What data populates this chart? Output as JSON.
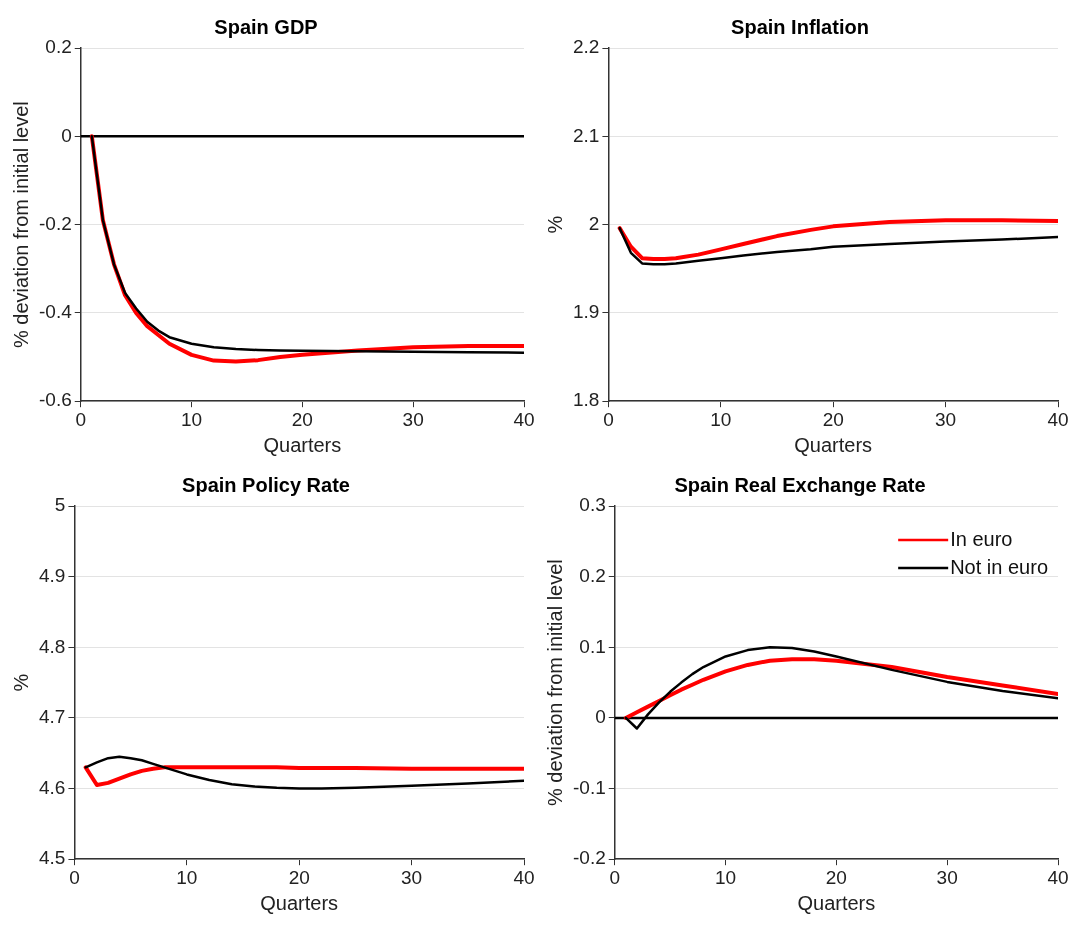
{
  "chart_data": [
    {
      "type": "line",
      "title": "Spain GDP",
      "xlabel": "Quarters",
      "ylabel": "% deviation from initial level",
      "xlim": [
        0,
        40
      ],
      "xticks": [
        0,
        10,
        20,
        30,
        40
      ],
      "ylim": [
        -0.6,
        0.2
      ],
      "yticks": [
        -0.6,
        -0.4,
        -0.2,
        0,
        0.2
      ],
      "grid": "y",
      "legend": false,
      "marker": "none",
      "line_style": "solid",
      "x": [
        1,
        2,
        3,
        4,
        5,
        6,
        7,
        8,
        10,
        12,
        14,
        16,
        18,
        20,
        25,
        30,
        35,
        40
      ],
      "series": [
        {
          "color": "#ff0000",
          "values": [
            0,
            -0.19,
            -0.29,
            -0.36,
            -0.4,
            -0.43,
            -0.45,
            -0.47,
            -0.495,
            -0.508,
            -0.51,
            -0.507,
            -0.5,
            -0.495,
            -0.485,
            -0.478,
            -0.475,
            -0.475
          ]
        },
        {
          "color": "#000000",
          "values": [
            0,
            -0.19,
            -0.29,
            -0.355,
            -0.39,
            -0.42,
            -0.44,
            -0.455,
            -0.47,
            -0.478,
            -0.482,
            -0.484,
            -0.485,
            -0.486,
            -0.487,
            -0.488,
            -0.489,
            -0.49
          ]
        }
      ],
      "ref_lines": [
        {
          "axis": "y",
          "value": 0,
          "color": "#000000"
        }
      ]
    },
    {
      "type": "line",
      "title": "Spain Inflation",
      "xlabel": "Quarters",
      "ylabel": "%",
      "xlim": [
        0,
        40
      ],
      "xticks": [
        0,
        10,
        20,
        30,
        40
      ],
      "ylim": [
        1.8,
        2.2
      ],
      "yticks": [
        1.8,
        1.9,
        2,
        2.1,
        2.2
      ],
      "grid": "y",
      "legend": false,
      "marker": "none",
      "line_style": "solid",
      "x": [
        1,
        2,
        3,
        4,
        5,
        6,
        8,
        10,
        12,
        15,
        18,
        20,
        25,
        30,
        35,
        40
      ],
      "series": [
        {
          "color": "#ff0000",
          "values": [
            1.996,
            1.975,
            1.962,
            1.961,
            1.961,
            1.962,
            1.966,
            1.972,
            1.978,
            1.987,
            1.994,
            1.998,
            2.003,
            2.005,
            2.005,
            2.004
          ]
        },
        {
          "color": "#000000",
          "values": [
            1.996,
            1.968,
            1.956,
            1.955,
            1.955,
            1.956,
            1.959,
            1.962,
            1.965,
            1.969,
            1.972,
            1.975,
            1.978,
            1.981,
            1.983,
            1.986
          ]
        }
      ]
    },
    {
      "type": "line",
      "title": "Spain Policy Rate",
      "xlabel": "Quarters",
      "ylabel": "%",
      "xlim": [
        0,
        40
      ],
      "xticks": [
        0,
        10,
        20,
        30,
        40
      ],
      "ylim": [
        4.5,
        5
      ],
      "yticks": [
        4.5,
        4.6,
        4.7,
        4.8,
        4.9,
        5
      ],
      "grid": "y",
      "legend": false,
      "marker": "none",
      "line_style": "solid",
      "x": [
        1,
        2,
        3,
        4,
        5,
        6,
        7,
        8,
        10,
        12,
        14,
        16,
        18,
        20,
        22,
        25,
        30,
        35,
        40
      ],
      "series": [
        {
          "color": "#ff0000",
          "values": [
            4.63,
            4.605,
            4.608,
            4.614,
            4.62,
            4.625,
            4.628,
            4.63,
            4.63,
            4.63,
            4.63,
            4.63,
            4.63,
            4.629,
            4.629,
            4.629,
            4.628,
            4.628,
            4.628
          ]
        },
        {
          "color": "#000000",
          "values": [
            4.63,
            4.637,
            4.643,
            4.645,
            4.643,
            4.64,
            4.635,
            4.63,
            4.62,
            4.612,
            4.606,
            4.603,
            4.601,
            4.6,
            4.6,
            4.601,
            4.604,
            4.607,
            4.611
          ]
        }
      ]
    },
    {
      "type": "line",
      "title": "Spain Real Exchange Rate",
      "xlabel": "Quarters",
      "ylabel": "% deviation from initial level",
      "xlim": [
        0,
        40
      ],
      "xticks": [
        0,
        10,
        20,
        30,
        40
      ],
      "ylim": [
        -0.2,
        0.3
      ],
      "yticks": [
        -0.2,
        -0.1,
        0,
        0.1,
        0.2,
        0.3
      ],
      "grid": "y",
      "legend": "top right",
      "marker": "none",
      "line_style": "solid",
      "x": [
        1,
        2,
        3,
        4,
        5,
        6,
        7,
        8,
        10,
        12,
        14,
        16,
        18,
        20,
        25,
        30,
        35,
        40
      ],
      "series": [
        {
          "name": "In euro",
          "color": "#ff0000",
          "values": [
            0,
            0.008,
            0.016,
            0.024,
            0.032,
            0.04,
            0.047,
            0.054,
            0.066,
            0.075,
            0.081,
            0.083,
            0.083,
            0.081,
            0.072,
            0.058,
            0.046,
            0.034
          ]
        },
        {
          "name": "Not in euro",
          "color": "#000000",
          "values": [
            0,
            -0.015,
            0.005,
            0.022,
            0.037,
            0.05,
            0.062,
            0.072,
            0.087,
            0.096,
            0.1,
            0.099,
            0.094,
            0.087,
            0.068,
            0.051,
            0.038,
            0.028
          ]
        }
      ],
      "ref_lines": [
        {
          "axis": "y",
          "value": 0,
          "color": "#000000"
        }
      ]
    }
  ]
}
